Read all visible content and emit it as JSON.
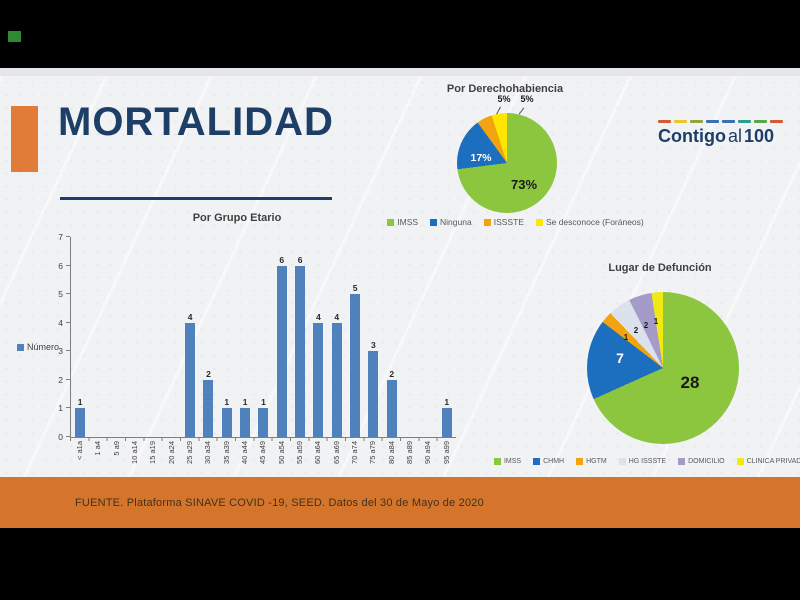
{
  "slide": {
    "title": "MORTALIDAD",
    "footer": "FUENTE. Plataforma SINAVE COVID -19, SEED. Datos del 30 de Mayo de 2020"
  },
  "logo": {
    "part1": "Contigo",
    "part2": "al",
    "part3": "100",
    "dash_colors": [
      "#d65a31",
      "#e8c62c",
      "#9aa23a",
      "#3a6eb5",
      "#3a6eb5",
      "#2a9d8f",
      "#5aa646",
      "#d65a31"
    ]
  },
  "colors": {
    "navy": "#1d3e66",
    "accent_orange_rect": "#e07c38",
    "footer_band_orange": "#d5752c",
    "footer_text": "#43301c",
    "green_marker": "#2e8a32",
    "slide_background": "#f1f2f4"
  },
  "chart_data": [
    {
      "type": "pie",
      "title": "Por Derechohabiencia",
      "labels": [
        "IMSS",
        "Ninguna",
        "ISSSTE",
        "Se desconoce (Foráneos)"
      ],
      "values": [
        73,
        17,
        5,
        5
      ],
      "value_labels": [
        "73%",
        "17%",
        "5%",
        "5%"
      ],
      "colors": [
        "#8cc63f",
        "#1b6fbe",
        "#f2a30d",
        "#ffe600"
      ],
      "legend_position": "bottom"
    },
    {
      "type": "bar",
      "title": "Por Grupo Etario",
      "series_name": "Número",
      "categories": [
        "< a1a",
        "1 a4",
        "5 a9",
        "10 a14",
        "15 a19",
        "20 a24",
        "25 a29",
        "30 a34",
        "35 a39",
        "40 a44",
        "45 a49",
        "50 a54",
        "55 a59",
        "60 a64",
        "65 a69",
        "70 a74",
        "75 a79",
        "80 a84",
        "85 a89",
        "90 a94",
        "95 a99"
      ],
      "values": [
        1,
        0,
        0,
        0,
        0,
        0,
        4,
        2,
        1,
        1,
        1,
        6,
        6,
        4,
        4,
        5,
        3,
        2,
        0,
        0,
        1
      ],
      "ylim": [
        0,
        7
      ],
      "bar_color": "#4f81bd",
      "grid": false,
      "legend_position": "left"
    },
    {
      "type": "pie",
      "title": "Lugar de Defunción",
      "labels": [
        "IMSS",
        "CHMH",
        "HGTM",
        "HG ISSSTE",
        "DOMICILIO",
        "CLINICA PRIVADA"
      ],
      "values": [
        28,
        7,
        1,
        2,
        2,
        1
      ],
      "colors": [
        "#8cc63f",
        "#1b6fbe",
        "#f2a30d",
        "#dbe2ee",
        "#a49bc8",
        "#f0e912"
      ],
      "legend_position": "bottom"
    }
  ]
}
